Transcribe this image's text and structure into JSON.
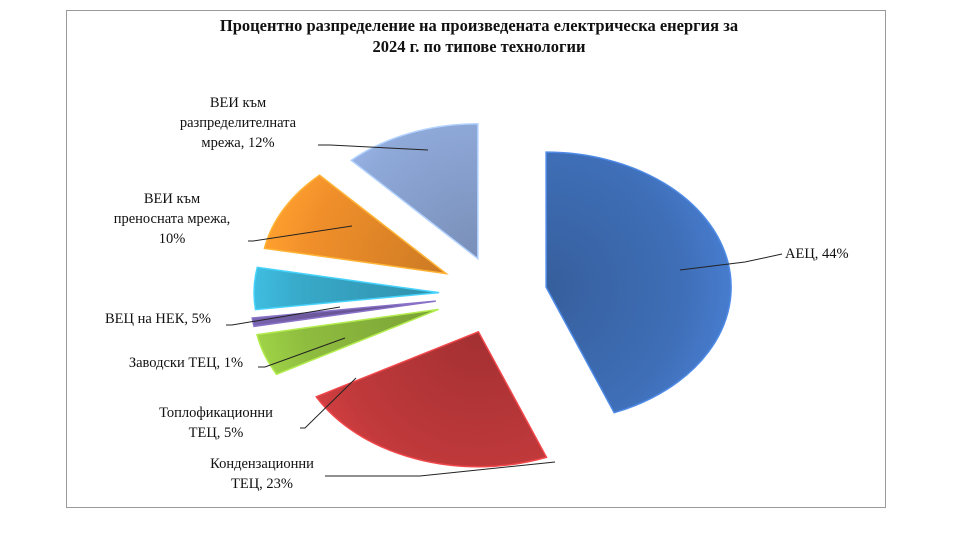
{
  "chart_data": {
    "type": "pie",
    "title_lines": [
      "Процентно разпределение на произведената електрическа енергия за",
      "2024 г. по типове технологии"
    ],
    "slices": [
      {
        "label_lines": [
          "АЕЦ, 44%"
        ],
        "value": 44,
        "color": "#3f6fb8"
      },
      {
        "label_lines": [
          "Кондензационни",
          "ТЕЦ, 23%"
        ],
        "value": 23,
        "color": "#c0393b"
      },
      {
        "label_lines": [
          "Топлофикационни",
          "ТЕЦ, 5%"
        ],
        "value": 5,
        "color": "#8fbd3f"
      },
      {
        "label_lines": [
          "Заводски ТЕЦ, 1%"
        ],
        "value": 1,
        "color": "#6d5a9e"
      },
      {
        "label_lines": [
          "ВЕЦ на НЕК, 5%"
        ],
        "value": 5,
        "color": "#38a9c9"
      },
      {
        "label_lines": [
          "ВЕИ към",
          "преносната мрежа,",
          "10%"
        ],
        "value": 10,
        "color": "#f08f2a"
      },
      {
        "label_lines": [
          "ВЕИ към",
          "разпределителната",
          "мрежа, 12%"
        ],
        "value": 12,
        "color": "#8ea8d8"
      }
    ]
  }
}
